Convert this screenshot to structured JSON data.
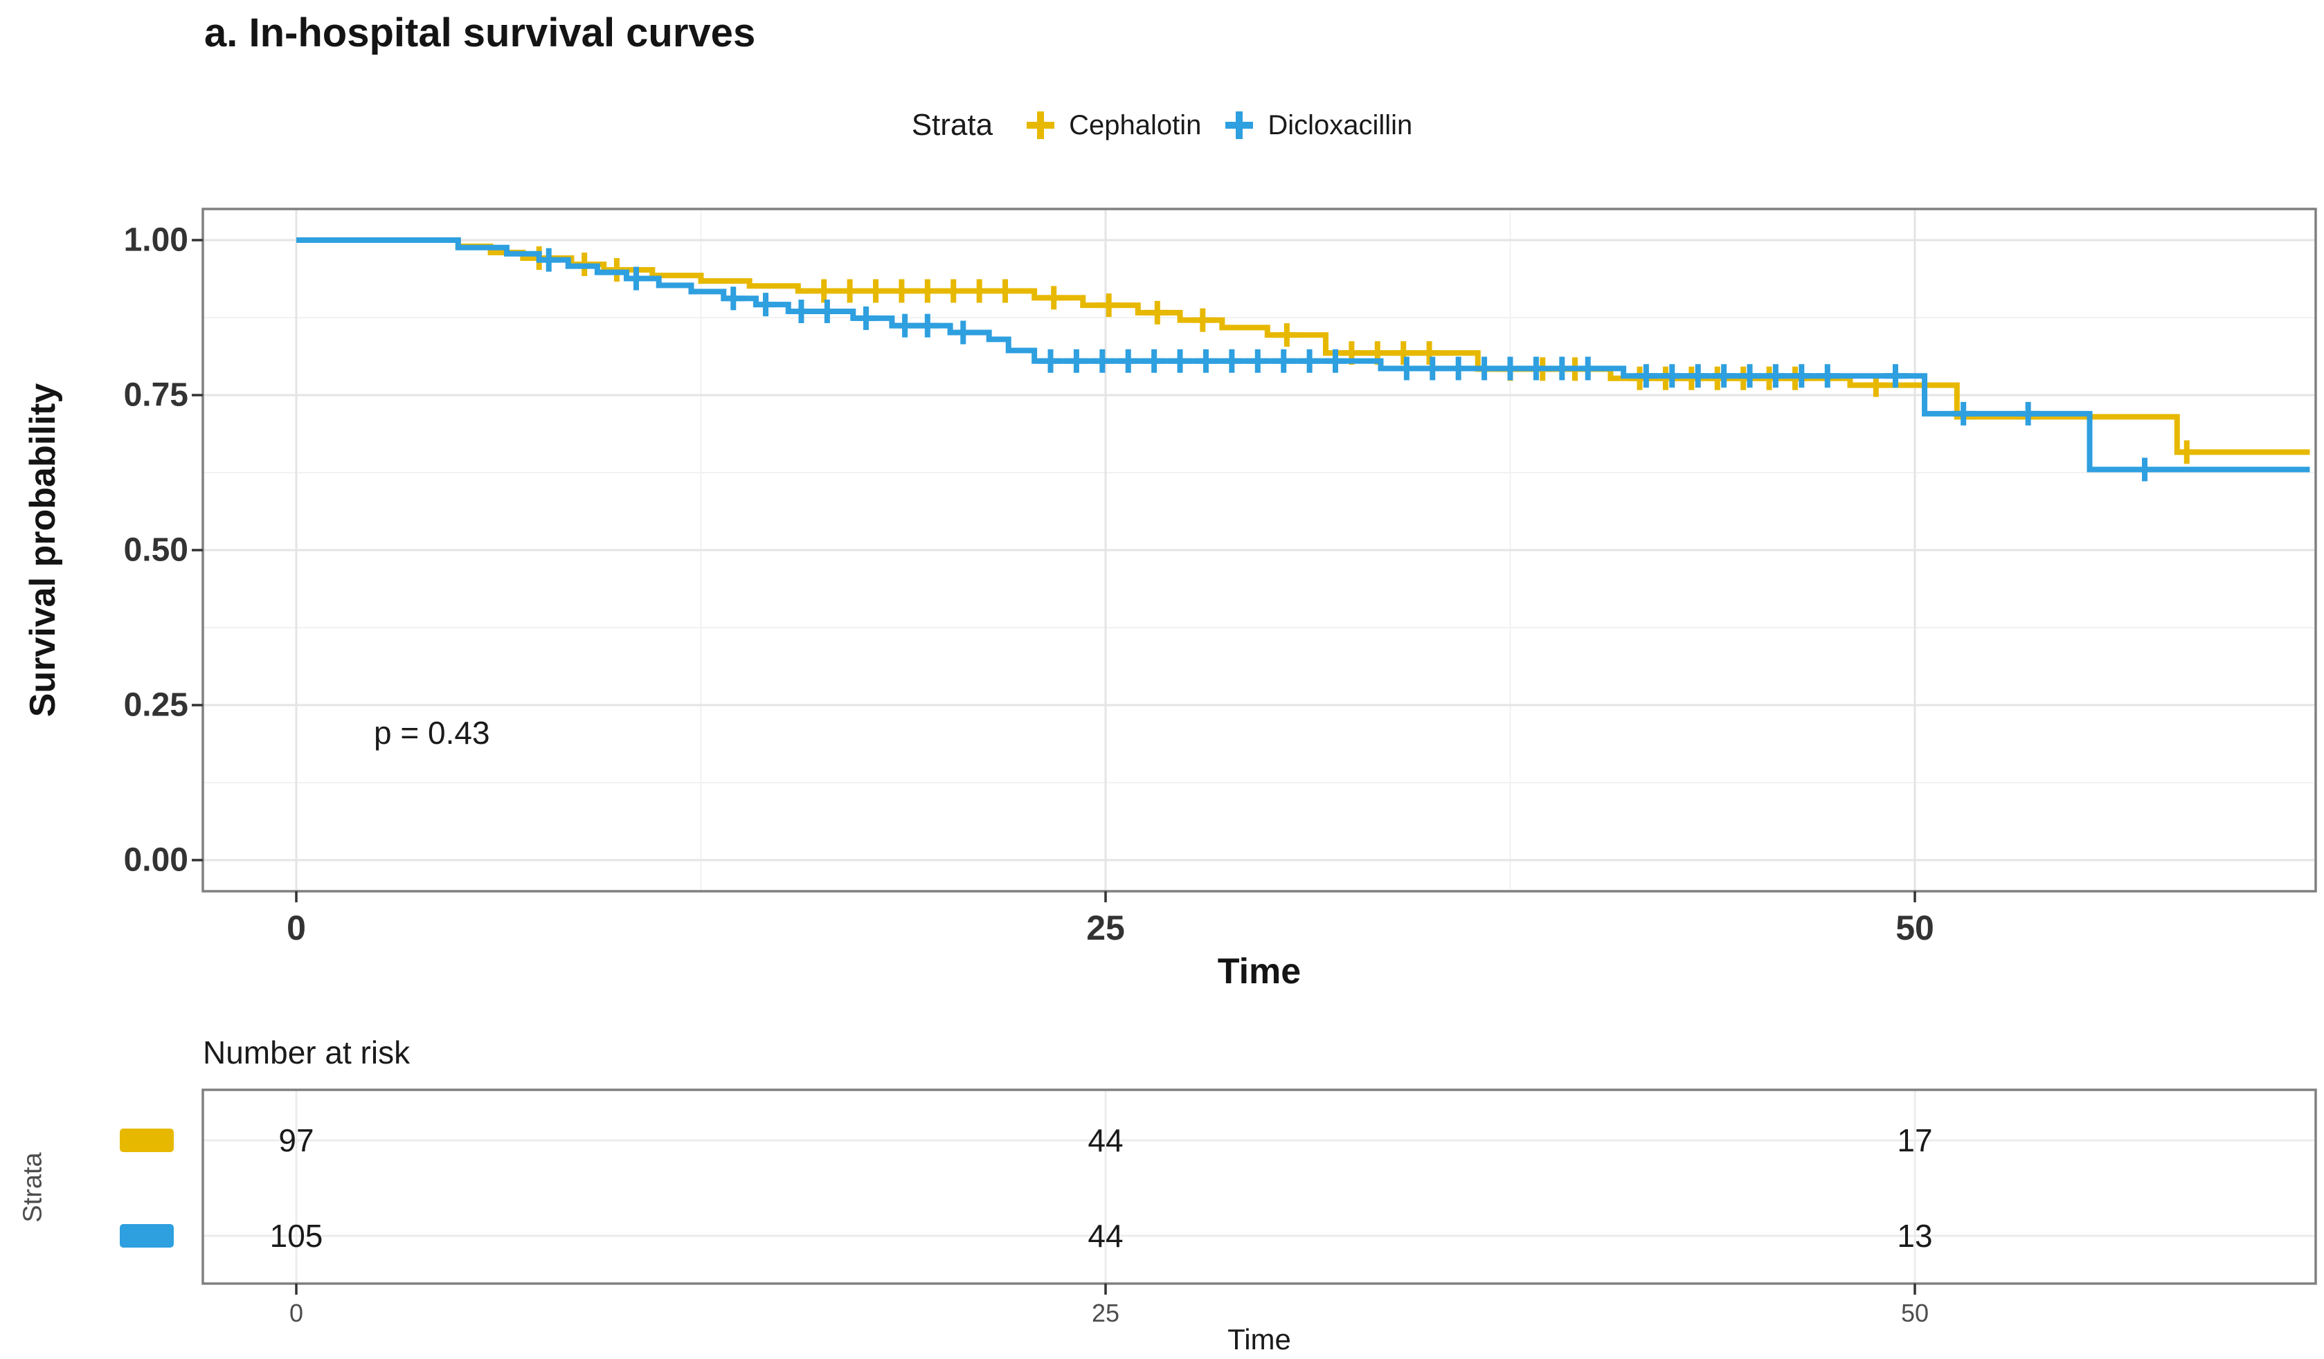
{
  "chart_data": {
    "type": "line",
    "subtype": "kaplan_meier_step_survival",
    "title": "a. In-hospital survival curves",
    "xlabel": "Time",
    "ylabel": "Survival probability",
    "legend_title": "Strata",
    "legend_position": "top",
    "pvalue_label": "p = 0.43",
    "grid": true,
    "xlim": [
      -3,
      62.4
    ],
    "ylim": [
      0,
      1.0
    ],
    "xticks": [
      0,
      25,
      50
    ],
    "xtick_labels": [
      "0",
      "25",
      "50"
    ],
    "yticks": [
      1.0,
      0.75,
      0.5,
      0.25,
      0.0
    ],
    "ytick_labels": [
      "1.00",
      "0.75",
      "0.50",
      "0.25",
      "0.00"
    ],
    "series": [
      {
        "name": "Cephalotin",
        "color": "#E7B800",
        "steps": [
          [
            0,
            1
          ],
          [
            5,
            0.99
          ],
          [
            6,
            0.98
          ],
          [
            7,
            0.971
          ],
          [
            8.5,
            0.961
          ],
          [
            9.5,
            0.952
          ],
          [
            11,
            0.943
          ],
          [
            12.5,
            0.934
          ],
          [
            14,
            0.926
          ],
          [
            15.5,
            0.918
          ],
          [
            22.8,
            0.907
          ],
          [
            24.3,
            0.895
          ],
          [
            26,
            0.883
          ],
          [
            27.3,
            0.871
          ],
          [
            28.6,
            0.859
          ],
          [
            30,
            0.847
          ],
          [
            31.8,
            0.818
          ],
          [
            36.5,
            0.792
          ],
          [
            40.6,
            0.777
          ],
          [
            48,
            0.766
          ],
          [
            51.3,
            0.715
          ],
          [
            58.1,
            0.658
          ],
          [
            62.2,
            0.658
          ]
        ],
        "censors": [
          [
            7.5,
            0.971
          ],
          [
            8.9,
            0.961
          ],
          [
            9.9,
            0.952
          ],
          [
            16.3,
            0.918
          ],
          [
            17.1,
            0.918
          ],
          [
            17.9,
            0.918
          ],
          [
            18.7,
            0.918
          ],
          [
            19.5,
            0.918
          ],
          [
            20.3,
            0.918
          ],
          [
            21.1,
            0.918
          ],
          [
            21.9,
            0.918
          ],
          [
            23.4,
            0.907
          ],
          [
            25.1,
            0.895
          ],
          [
            26.6,
            0.883
          ],
          [
            28,
            0.871
          ],
          [
            30.6,
            0.847
          ],
          [
            32.6,
            0.818
          ],
          [
            33.4,
            0.818
          ],
          [
            34.2,
            0.818
          ],
          [
            35,
            0.818
          ],
          [
            37.5,
            0.792
          ],
          [
            38.5,
            0.792
          ],
          [
            39.5,
            0.792
          ],
          [
            41.5,
            0.777
          ],
          [
            42.3,
            0.777
          ],
          [
            43.1,
            0.777
          ],
          [
            43.9,
            0.777
          ],
          [
            44.7,
            0.777
          ],
          [
            45.5,
            0.777
          ],
          [
            46.3,
            0.777
          ],
          [
            48.8,
            0.766
          ],
          [
            58.4,
            0.658
          ]
        ]
      },
      {
        "name": "Dicloxacillin",
        "color": "#2E9FDF",
        "steps": [
          [
            0,
            1
          ],
          [
            5,
            0.988
          ],
          [
            6.5,
            0.978
          ],
          [
            7.5,
            0.968
          ],
          [
            8.4,
            0.958
          ],
          [
            9.3,
            0.948
          ],
          [
            10.2,
            0.938
          ],
          [
            11.2,
            0.927
          ],
          [
            12.2,
            0.917
          ],
          [
            13.2,
            0.906
          ],
          [
            14.2,
            0.896
          ],
          [
            15.2,
            0.885
          ],
          [
            17.2,
            0.874
          ],
          [
            18.4,
            0.862
          ],
          [
            20.2,
            0.851
          ],
          [
            21.4,
            0.84
          ],
          [
            22,
            0.822
          ],
          [
            22.8,
            0.805
          ],
          [
            33.5,
            0.793
          ],
          [
            41,
            0.781
          ],
          [
            50.3,
            0.72
          ],
          [
            55.4,
            0.63
          ],
          [
            62.2,
            0.63
          ]
        ],
        "censors": [
          [
            7.8,
            0.968
          ],
          [
            10.5,
            0.938
          ],
          [
            13.5,
            0.906
          ],
          [
            14.5,
            0.896
          ],
          [
            15.6,
            0.885
          ],
          [
            16.4,
            0.885
          ],
          [
            17.6,
            0.874
          ],
          [
            18.8,
            0.862
          ],
          [
            19.5,
            0.862
          ],
          [
            20.6,
            0.851
          ],
          [
            23.3,
            0.805
          ],
          [
            24.1,
            0.805
          ],
          [
            24.9,
            0.805
          ],
          [
            25.7,
            0.805
          ],
          [
            26.5,
            0.805
          ],
          [
            27.3,
            0.805
          ],
          [
            28.1,
            0.805
          ],
          [
            28.9,
            0.805
          ],
          [
            29.7,
            0.805
          ],
          [
            30.5,
            0.805
          ],
          [
            31.3,
            0.805
          ],
          [
            32.1,
            0.805
          ],
          [
            34.3,
            0.793
          ],
          [
            35.1,
            0.793
          ],
          [
            35.9,
            0.793
          ],
          [
            36.7,
            0.793
          ],
          [
            37.5,
            0.793
          ],
          [
            38.3,
            0.793
          ],
          [
            39.1,
            0.793
          ],
          [
            39.9,
            0.793
          ],
          [
            41.7,
            0.781
          ],
          [
            42.5,
            0.781
          ],
          [
            43.3,
            0.781
          ],
          [
            44.1,
            0.781
          ],
          [
            44.9,
            0.781
          ],
          [
            45.7,
            0.781
          ],
          [
            46.5,
            0.781
          ],
          [
            47.3,
            0.781
          ],
          [
            49.4,
            0.781
          ],
          [
            51.5,
            0.72
          ],
          [
            53.5,
            0.72
          ],
          [
            57.1,
            0.63
          ]
        ]
      }
    ],
    "risk_table": {
      "title": "Number at risk",
      "ylabel": "Strata",
      "xlabel": "Time",
      "times": [
        0,
        25,
        50
      ],
      "xtick_labels": [
        "0",
        "25",
        "50"
      ],
      "rows": [
        {
          "name": "Cephalotin",
          "color": "#E7B800",
          "counts": [
            "97",
            "44",
            "17"
          ]
        },
        {
          "name": "Dicloxacillin",
          "color": "#2E9FDF",
          "counts": [
            "105",
            "44",
            "13"
          ]
        }
      ]
    }
  }
}
